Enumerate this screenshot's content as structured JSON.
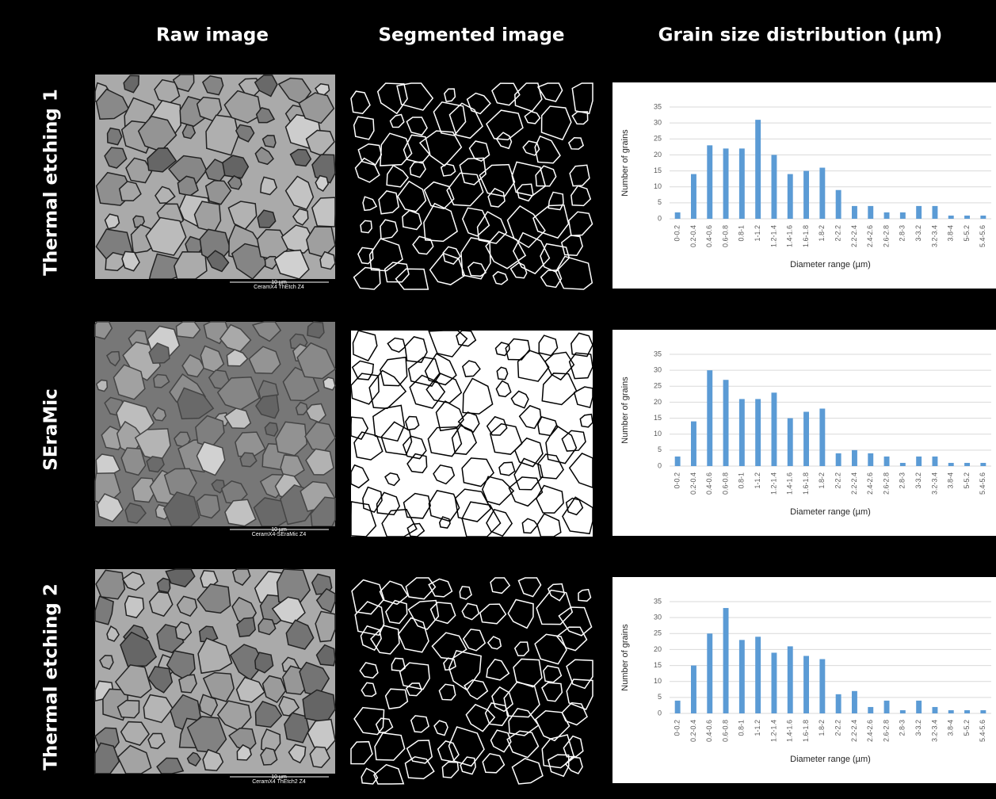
{
  "columns": [
    "Raw image",
    "Segmented image",
    "Grain size distribution (µm)"
  ],
  "rows": [
    {
      "label": "Thermal etching 1",
      "scale_bar": "10 µm",
      "sample": "CeramX4 ThEtch Z4"
    },
    {
      "label": "SEraMic",
      "scale_bar": "10 µm",
      "sample": "CeramX4-SEraMic Z4"
    },
    {
      "label": "Thermal etching 2",
      "scale_bar": "10 µm",
      "sample": "CeramX4 ThEtch2 Z4"
    }
  ],
  "chart_data": [
    {
      "type": "bar",
      "xlabel": "Diameter range (µm)",
      "ylabel": "Number of grains",
      "categories": [
        "0-0.2",
        "0.2-0.4",
        "0.4-0.6",
        "0.6-0.8",
        "0.8-1",
        "1-1.2",
        "1.2-1.4",
        "1.4-1.6",
        "1.6-1.8",
        "1.8-2",
        "2-2.2",
        "2.2-2.4",
        "2.4-2.6",
        "2.6-2.8",
        "2.8-3",
        "3-3.2",
        "3.2-3.4",
        "3.8-4",
        "5-5.2",
        "5.4-5.6"
      ],
      "values": [
        2,
        14,
        23,
        22,
        22,
        31,
        20,
        14,
        15,
        16,
        9,
        4,
        4,
        2,
        2,
        4,
        4,
        1,
        1,
        1
      ],
      "color": "#5b9bd5",
      "ylim": [
        0,
        35
      ],
      "yticks": [
        0,
        5,
        10,
        15,
        20,
        25,
        30,
        35
      ],
      "grid": true
    },
    {
      "type": "bar",
      "xlabel": "Diameter range (µm)",
      "ylabel": "Number of grains",
      "categories": [
        "0-0.2",
        "0.2-0.4",
        "0.4-0.6",
        "0.6-0.8",
        "0.8-1",
        "1-1.2",
        "1.2-1.4",
        "1.4-1.6",
        "1.6-1.8",
        "1.8-2",
        "2-2.2",
        "2.2-2.4",
        "2.4-2.6",
        "2.6-2.8",
        "2.8-3",
        "3-3.2",
        "3.2-3.4",
        "3.8-4",
        "5-5.2",
        "5.4-5.6"
      ],
      "values": [
        3,
        14,
        30,
        27,
        21,
        21,
        23,
        15,
        17,
        18,
        4,
        5,
        4,
        3,
        1,
        3,
        3,
        1,
        1,
        1
      ],
      "color": "#5b9bd5",
      "ylim": [
        0,
        35
      ],
      "yticks": [
        0,
        5,
        10,
        15,
        20,
        25,
        30,
        35
      ],
      "grid": true
    },
    {
      "type": "bar",
      "xlabel": "Diameter range (µm)",
      "ylabel": "Number of grains",
      "categories": [
        "0-0.2",
        "0.2-0.4",
        "0.4-0.6",
        "0.6-0.8",
        "0.8-1",
        "1-1.2",
        "1.2-1.4",
        "1.4-1.6",
        "1.6-1.8",
        "1.8-2",
        "2-2.2",
        "2.2-2.4",
        "2.4-2.6",
        "2.6-2.8",
        "2.8-3",
        "3-3.2",
        "3.2-3.4",
        "3.8-4",
        "5-5.2",
        "5.4-5.6"
      ],
      "values": [
        4,
        15,
        25,
        33,
        23,
        24,
        19,
        21,
        18,
        17,
        6,
        7,
        2,
        4,
        1,
        4,
        2,
        1,
        1,
        1
      ],
      "color": "#5b9bd5",
      "ylim": [
        0,
        35
      ],
      "yticks": [
        0,
        5,
        10,
        15,
        20,
        25,
        30,
        35
      ],
      "grid": true
    }
  ]
}
